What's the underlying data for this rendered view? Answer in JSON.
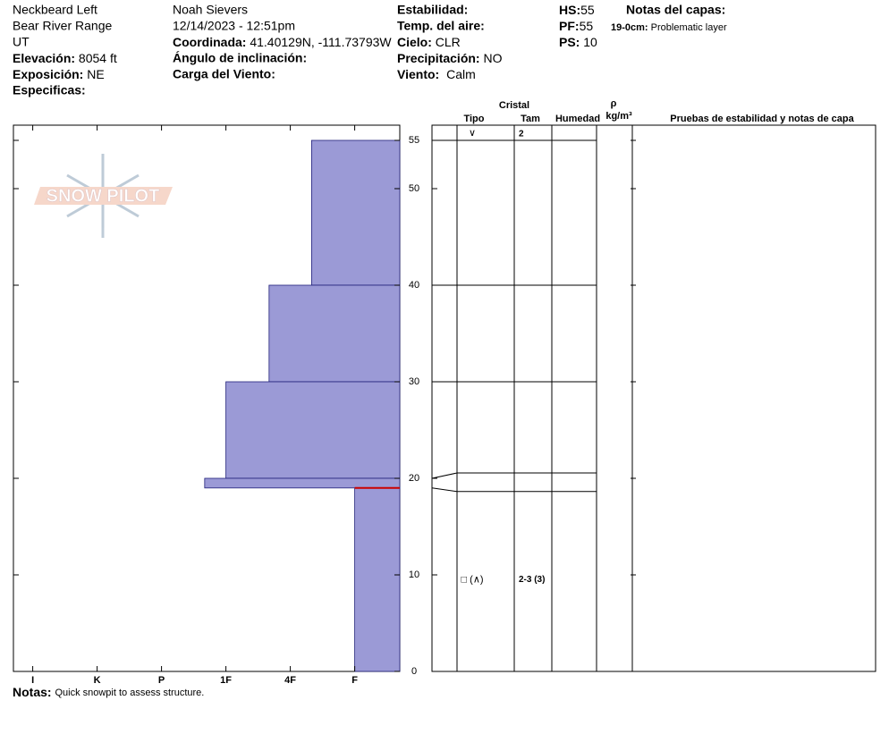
{
  "header": {
    "location": "Neckbeard Left",
    "range": "Bear River Range",
    "state": "UT",
    "elevation": {
      "label": "Elevación:",
      "value": "8054 ft"
    },
    "aspect": {
      "label": "Exposición:",
      "value": "NE"
    },
    "specifics": {
      "label": "Especificas:"
    },
    "observer": "Noah Sievers",
    "datetime": "12/14/2023 - 12:51pm",
    "coordinates": {
      "label": "Coordinada:",
      "value": "41.40129N, -111.73793W"
    },
    "slope_angle": {
      "label": "Ángulo de inclinación:"
    },
    "wind_loading": {
      "label": "Carga del Viento:"
    },
    "stability": {
      "label": "Estabilidad:"
    },
    "air_temp": {
      "label": "Temp. del aire:"
    },
    "sky": {
      "label": "Cielo:",
      "value": "CLR"
    },
    "precipitation": {
      "label": "Precipitación:",
      "value": "NO"
    },
    "wind": {
      "label": "Viento:",
      "value": "Calm"
    },
    "hs": {
      "label": "HS:",
      "value": "55"
    },
    "pf": {
      "label": "PF:",
      "value": "55"
    },
    "ps": {
      "label": "PS:",
      "value": "10"
    },
    "layer_notes": {
      "label": "Notas del capas:",
      "items": [
        {
          "range": "19-0cm:",
          "text": "Problematic layer"
        }
      ]
    },
    "logo": "SNOW PILOT"
  },
  "chart_data": {
    "type": "snowpit",
    "ylim": [
      0,
      55
    ],
    "yticks": [
      0,
      10,
      20,
      30,
      40,
      50,
      55
    ],
    "xlim": [
      0.7,
      6.7
    ],
    "xticks": [
      {
        "value": 1,
        "label": "I"
      },
      {
        "value": 2,
        "label": "K"
      },
      {
        "value": 3,
        "label": "P"
      },
      {
        "value": 4,
        "label": "1F"
      },
      {
        "value": 5,
        "label": "4F"
      },
      {
        "value": 6,
        "label": "F"
      }
    ],
    "color": "#9b9ad6",
    "critical_height": 19,
    "columns": {
      "crystal": "Cristal",
      "type": "Tipo",
      "size": "Tam",
      "moisture": "Humedad",
      "rho": "ρ",
      "density": "kg/m³",
      "tests": "Pruebas de estabilidad y notas de capa"
    },
    "layers": [
      {
        "top": 55,
        "bottom": 40,
        "hardness": 5.33,
        "crystal": "∨",
        "size": "2"
      },
      {
        "top": 40,
        "bottom": 30,
        "hardness": 4.67
      },
      {
        "top": 30,
        "bottom": 20,
        "hardness": 4
      },
      {
        "top": 20,
        "bottom": 19,
        "hardness": 3.67
      },
      {
        "top": 19,
        "bottom": 0,
        "hardness": 6,
        "crystal": "□ (∧)",
        "size": "2-3 (3)"
      }
    ]
  },
  "notes": {
    "label": "Notas:",
    "text": "Quick snowpit to assess structure."
  }
}
